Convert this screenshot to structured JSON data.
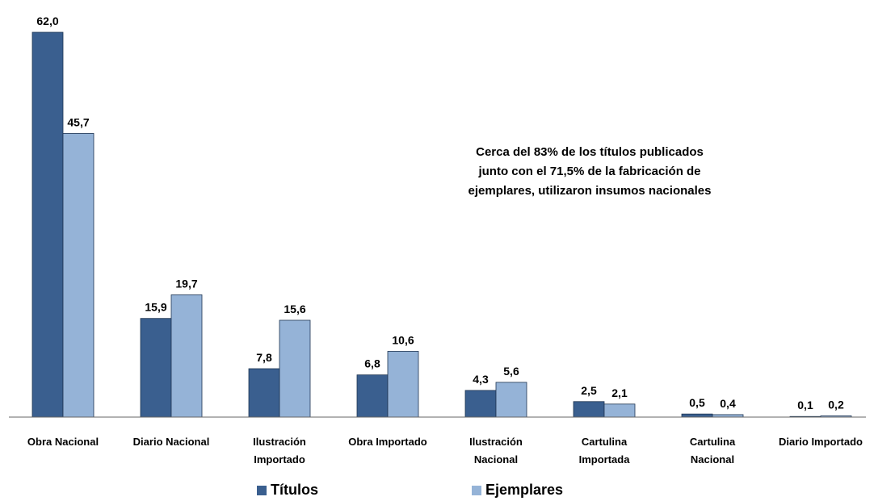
{
  "chart_data": {
    "type": "bar",
    "annotation": "Cerca del 83% de los títulos publicados\njunto con el 71,5% de la fabricación de\nejemplares, utilizaron insumos nacionales",
    "categories": [
      "Obra Nacional",
      "Diario Nacional",
      "Ilustración\nImportado",
      "Obra Importado",
      "Ilustración\nNacional",
      "Cartulina\nImportada",
      "Cartulina\nNacional",
      "Diario Importado"
    ],
    "series": [
      {
        "name": "Títulos",
        "color": "#3a5f8f",
        "values": [
          62.0,
          15.9,
          7.8,
          6.8,
          4.3,
          2.5,
          0.5,
          0.1
        ],
        "value_labels": [
          "62,0",
          "15,9",
          "7,8",
          "6,8",
          "4,3",
          "2,5",
          "0,5",
          "0,1"
        ]
      },
      {
        "name": "Ejemplares",
        "color": "#95b3d7",
        "values": [
          45.7,
          19.7,
          15.6,
          10.6,
          5.6,
          2.1,
          0.4,
          0.2
        ],
        "value_labels": [
          "45,7",
          "19,7",
          "15,6",
          "10,6",
          "5,6",
          "2,1",
          "0,4",
          "0,2"
        ]
      }
    ],
    "ylim": [
      0,
      62
    ],
    "legend": "bottom"
  }
}
